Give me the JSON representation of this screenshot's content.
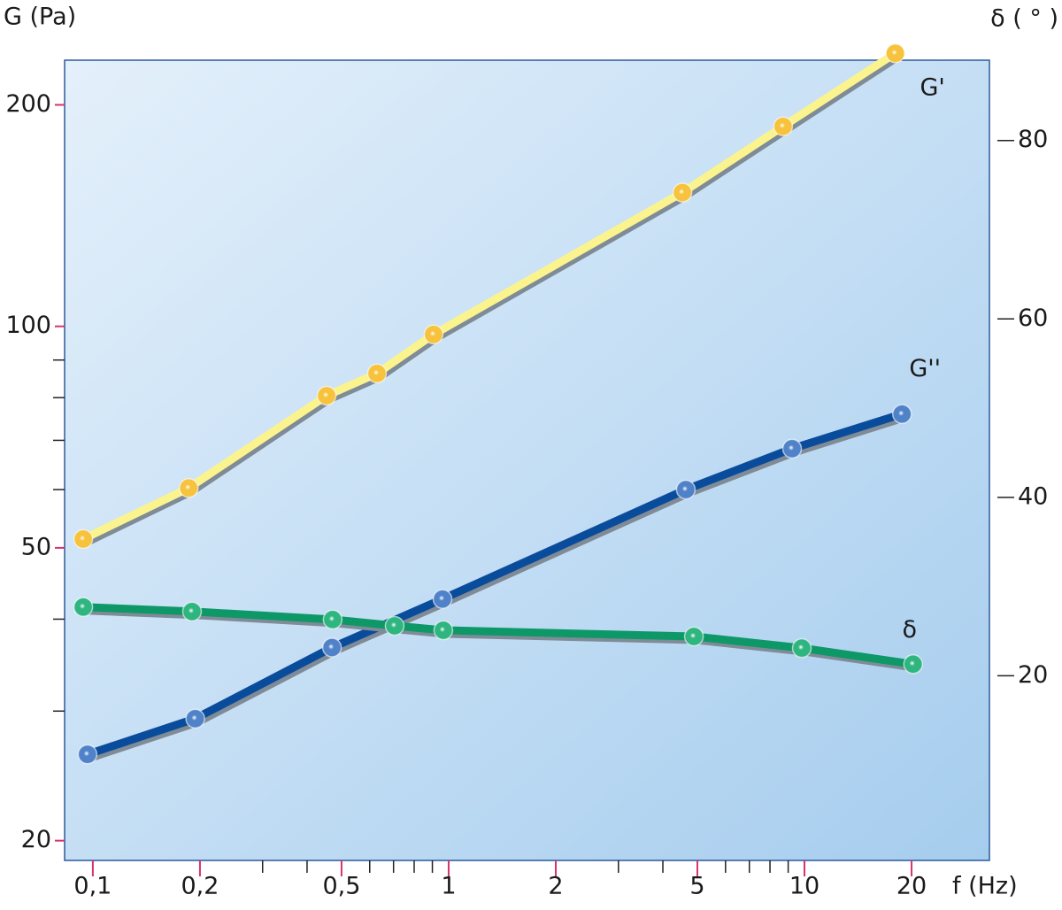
{
  "chart_data": {
    "type": "line",
    "y_label": "G (Pa)",
    "y2_label": "δ ( ° )",
    "x_label": "f (Hz)",
    "xscale": "log",
    "yscale": "log",
    "xlim": [
      0.0833,
      33.1
    ],
    "ylim": [
      18.8,
      230
    ],
    "y2lim": [
      -0.7,
      89
    ],
    "xticks": [
      {
        "value": 0.1,
        "label": "0,1"
      },
      {
        "value": 0.2,
        "label": "0,2"
      },
      {
        "value": 0.5,
        "label": "0,5"
      },
      1,
      2,
      5,
      10,
      20
    ],
    "xminorticks": [
      0.3,
      0.4,
      0.6,
      0.7,
      0.8,
      0.9,
      3,
      4,
      6,
      7,
      8,
      9
    ],
    "yticks": [
      20,
      50,
      100,
      200
    ],
    "yminorticks": [
      30,
      40,
      60,
      70,
      80,
      90
    ],
    "y2ticks": [
      20,
      40,
      60,
      80
    ],
    "background": [
      "#e4f0fb",
      "#a6cdee"
    ],
    "series": [
      {
        "name": "G'",
        "color": "#fbf48e",
        "marker_color": "#f7c23c",
        "x": [
          0.094,
          0.186,
          0.454,
          0.629,
          0.907,
          4.54,
          8.71,
          18.0
        ],
        "values": [
          51.4,
          60.3,
          80.5,
          86.3,
          97.5,
          152,
          187,
          235
        ]
      },
      {
        "name": "G''",
        "color": "#0a4c9c",
        "marker_color": "#4f82c8",
        "x": [
          0.0966,
          0.194,
          0.47,
          0.961,
          4.64,
          9.23,
          18.8
        ],
        "values": [
          26.2,
          29.3,
          36.6,
          42.6,
          60.0,
          68.2,
          76.0
        ]
      },
      {
        "name": "δ",
        "color": "#0e9868",
        "marker_color": "#2fb57f",
        "axis": "y2",
        "x": [
          0.094,
          0.19,
          0.472,
          0.705,
          0.966,
          4.89,
          9.83,
          20.2
        ],
        "values": [
          27.7,
          27.2,
          26.3,
          25.6,
          25.1,
          24.4,
          23.1,
          21.3
        ]
      }
    ]
  }
}
